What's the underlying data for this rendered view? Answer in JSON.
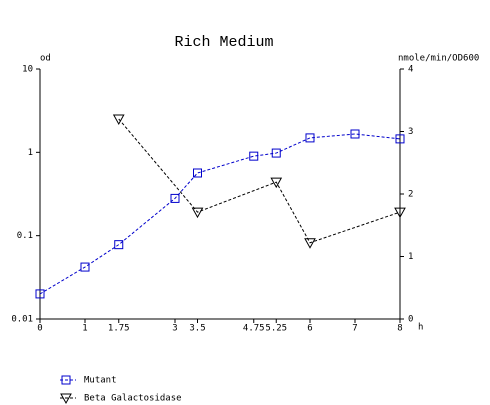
{
  "chart_data": {
    "type": "line",
    "title": "Rich Medium",
    "xlabel": "h",
    "ylabel": "od",
    "y2label": "nmole/min/OD600",
    "xlim": [
      0,
      8
    ],
    "xticks": [
      0,
      1,
      1.75,
      3,
      3.5,
      4.75,
      5.25,
      6,
      7,
      8
    ],
    "ylim": [
      0.01,
      10
    ],
    "yticks": [
      0.01,
      0.1,
      1,
      10
    ],
    "ylog": true,
    "y2lim": [
      0,
      4
    ],
    "y2ticks": [
      0,
      1,
      2,
      3,
      4
    ],
    "series": [
      {
        "name": "Mutant",
        "color": "#0000cc",
        "marker": "square",
        "x": [
          0,
          1,
          1.75,
          3,
          3.5,
          4.75,
          5.25,
          6,
          7,
          8
        ],
        "values": [
          0.02,
          0.042,
          0.078,
          0.28,
          0.565,
          0.9,
          0.98,
          1.49,
          1.66,
          1.45
        ]
      },
      {
        "name": "Beta Galactosidase",
        "color": "#000000",
        "marker": "triangle",
        "axis": "y2",
        "x": [
          1.75,
          3.5,
          5.25,
          6,
          8
        ],
        "values": [
          3.2,
          1.71,
          2.19,
          1.22,
          1.71
        ]
      }
    ]
  }
}
